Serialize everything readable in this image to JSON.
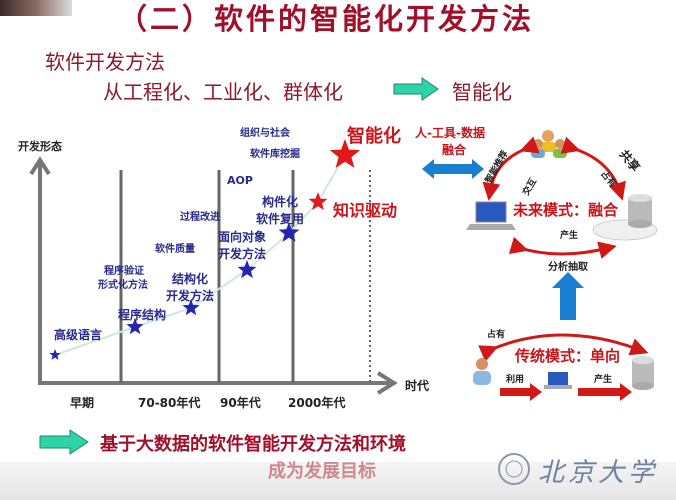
{
  "title": "（二）软件的智能化开发方法",
  "subtitle": "软件开发方法",
  "evolution": {
    "from": "从工程化、工业化、群体化",
    "to": "智能化"
  },
  "chart": {
    "y_label": "开发形态",
    "x_label": "时代",
    "eras": [
      "早期",
      "70-80年代",
      "90年代",
      "2000年代"
    ],
    "milestones": [
      {
        "label": "高级语言",
        "color": "#2424b0"
      },
      {
        "label": "程序结构",
        "color": "#2424b0"
      },
      {
        "label": "结构化\n开发方法",
        "color": "#2424b0"
      },
      {
        "label": "面向对象\n开发方法",
        "color": "#2424b0"
      },
      {
        "label": "构件化\n软件复用",
        "color": "#2424b0"
      },
      {
        "label": "知识驱动",
        "color": "#e01818"
      },
      {
        "label": "智能化",
        "color": "#e01818"
      }
    ],
    "topics": [
      "程序验证",
      "形式化方法",
      "软件质量",
      "过程改进",
      "AOP",
      "组织与社会",
      "软件库挖掘"
    ]
  },
  "right": {
    "fusion_line1": "人-工具-数据",
    "fusion_line2": "融合",
    "future_mode": "未来模式：融合",
    "future_labels": {
      "recommend": "智能推荐",
      "interact": "交互",
      "share": "共享",
      "own": "占有",
      "produce": "产生"
    },
    "extract": "分析抽取",
    "traditional_mode": "传统模式：单向",
    "traditional_labels": {
      "own": "占有",
      "use": "利用",
      "produce": "产生"
    }
  },
  "conclusion": {
    "line1": "基于大数据的软件智能开发方法和环境",
    "line2": "成为发展目标"
  },
  "logo": {
    "text": "北京大学"
  },
  "colors": {
    "title": "#a0102a",
    "accent_red": "#c8151b",
    "blue_star": "#2424b0",
    "green_arrow": "#2fd3a8",
    "blue_arrow": "#1a7fd0"
  }
}
